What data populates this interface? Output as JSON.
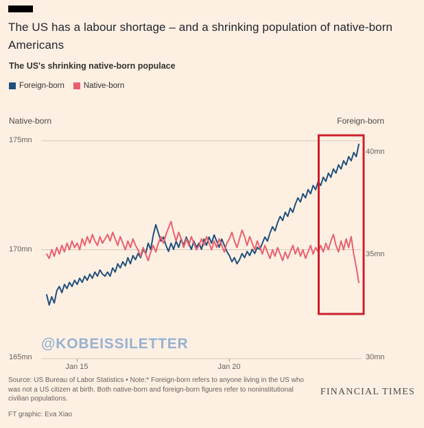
{
  "page": {
    "headline": "The US has a labour shortage – and a shrinking population of native-born Americans",
    "subtitle": "The US's shrinking native-born populace",
    "watermark": "@KOBEISSILETTER",
    "source_note": "Source: US Bureau of Labor Statistics • Note:* Foreign-born refers to anyone living in the US who was not a US citizen at birth. Both native-born and foreign-born figures refer to noninstitutional civilian populations.",
    "credit": "FT graphic: Eva Xiao",
    "brand": "FINANCIAL TIMES"
  },
  "legend": [
    {
      "label": "Foreign-born",
      "color": "#1f4e79"
    },
    {
      "label": "Native-born",
      "color": "#ea5f6d"
    }
  ],
  "axes": {
    "left_title": "Native-born",
    "right_title": "Foreign-born",
    "left_ticks": [
      "175mn",
      "170mn",
      "165mn"
    ],
    "right_ticks": [
      "40mn",
      "35mn",
      "30mn"
    ],
    "x_ticks": [
      "Jan 15",
      "Jan 20"
    ]
  },
  "chart_data": {
    "type": "line",
    "title": "The US's shrinking native-born populace",
    "x_start": "2014-01",
    "x_end": "2024-04",
    "x_frequency": "monthly",
    "x_tick_labels": [
      "Jan 15",
      "Jan 20"
    ],
    "x_tick_indices": [
      12,
      72
    ],
    "grid": true,
    "y_left": {
      "label": "Native-born (mn)",
      "min": 165,
      "max": 175,
      "ticks": [
        175,
        170,
        165
      ]
    },
    "y_right": {
      "label": "Foreign-born (mn)",
      "min": 30,
      "max": 40,
      "ticks": [
        40,
        35,
        30
      ]
    },
    "highlight": {
      "start_index": 108,
      "end_index": 123,
      "color": "#cc1f2a",
      "note": "recent divergence"
    },
    "series": [
      {
        "name": "Foreign-born",
        "axis": "right",
        "color": "#1f4e79",
        "unit": "mn",
        "values": [
          33.1,
          32.6,
          33.0,
          32.7,
          33.3,
          33.5,
          33.2,
          33.6,
          33.4,
          33.7,
          33.5,
          33.8,
          33.6,
          33.9,
          33.7,
          34.0,
          33.8,
          34.1,
          33.9,
          34.2,
          34.0,
          34.3,
          34.1,
          34.0,
          34.2,
          34.0,
          34.4,
          34.2,
          34.6,
          34.4,
          34.7,
          34.5,
          34.9,
          34.6,
          35.0,
          34.8,
          35.1,
          34.9,
          35.3,
          35.1,
          35.6,
          35.3,
          36.0,
          36.5,
          36.1,
          35.7,
          35.9,
          35.5,
          35.2,
          35.6,
          35.3,
          35.7,
          35.4,
          35.8,
          35.5,
          35.9,
          35.6,
          35.3,
          35.7,
          35.4,
          35.6,
          35.3,
          35.8,
          35.5,
          35.9,
          35.6,
          36.0,
          35.7,
          35.4,
          35.8,
          35.5,
          35.2,
          35.0,
          34.7,
          34.9,
          34.6,
          34.8,
          35.1,
          34.9,
          35.2,
          35.0,
          35.3,
          35.1,
          35.4,
          35.3,
          35.6,
          35.9,
          35.7,
          36.1,
          36.4,
          36.2,
          36.6,
          36.9,
          36.7,
          37.1,
          36.9,
          37.3,
          37.1,
          37.5,
          37.8,
          37.6,
          38.0,
          37.8,
          38.2,
          38.0,
          38.4,
          38.2,
          38.6,
          38.4,
          38.8,
          38.6,
          39.0,
          38.8,
          39.2,
          39.0,
          39.4,
          39.2,
          39.6,
          39.4,
          39.8,
          39.6,
          40.0,
          39.8,
          40.4
        ]
      },
      {
        "name": "Native-born",
        "axis": "left",
        "color": "#ea5f6d",
        "unit": "mn",
        "values": [
          169.8,
          169.6,
          170.0,
          169.7,
          170.1,
          169.8,
          170.2,
          169.9,
          170.3,
          170.0,
          170.4,
          170.1,
          170.3,
          170.0,
          170.5,
          170.2,
          170.6,
          170.3,
          170.7,
          170.4,
          170.2,
          170.6,
          170.3,
          170.5,
          170.7,
          170.4,
          170.8,
          170.5,
          170.2,
          170.6,
          170.3,
          170.0,
          170.4,
          170.1,
          170.5,
          170.2,
          170.0,
          169.7,
          170.1,
          169.8,
          169.5,
          169.9,
          170.2,
          169.9,
          170.3,
          170.6,
          170.3,
          170.7,
          171.0,
          171.3,
          170.8,
          170.4,
          170.8,
          170.5,
          170.1,
          170.5,
          170.2,
          170.6,
          170.3,
          170.0,
          170.2,
          170.5,
          170.2,
          170.6,
          170.3,
          170.0,
          170.4,
          170.1,
          170.5,
          170.2,
          169.9,
          170.3,
          170.5,
          170.8,
          170.4,
          170.1,
          170.5,
          170.9,
          170.6,
          170.2,
          170.6,
          170.3,
          170.0,
          170.4,
          170.1,
          169.8,
          170.2,
          169.9,
          169.6,
          170.0,
          169.7,
          170.1,
          169.8,
          169.5,
          169.9,
          169.6,
          169.9,
          170.2,
          169.8,
          170.1,
          169.7,
          170.0,
          169.6,
          169.9,
          170.2,
          169.8,
          170.1,
          169.9,
          170.2,
          169.9,
          170.3,
          170.0,
          170.4,
          170.7,
          170.2,
          169.9,
          170.4,
          170.0,
          170.5,
          170.1,
          170.6,
          169.8,
          169.2,
          168.5
        ]
      }
    ]
  }
}
